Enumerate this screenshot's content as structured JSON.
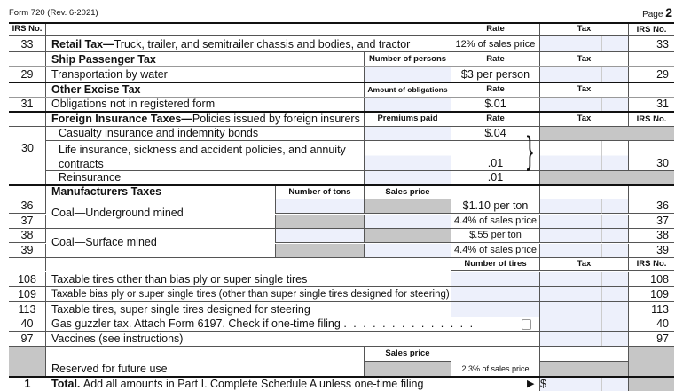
{
  "header": {
    "form": "Form 720 (Rev. 6-2021)",
    "page_label": "Page",
    "page_num": "2"
  },
  "col": {
    "irs_no": "IRS No.",
    "rate": "Rate",
    "tax": "Tax",
    "number_of_persons": "Number of persons",
    "amount_of_obligations": "Amount of obligations",
    "premiums_paid": "Premiums paid",
    "number_of_tons": "Number of tons",
    "sales_price": "Sales price",
    "number_of_tires": "Number of tires"
  },
  "retail": {
    "no": "33",
    "title": "Retail Tax—",
    "desc": "Truck, trailer, and semitrailer chassis and bodies, and tractor",
    "rate": "12% of sales price"
  },
  "ship": {
    "title": "Ship Passenger Tax",
    "no": "29",
    "desc": "Transportation by water",
    "rate": "$3 per person"
  },
  "other": {
    "title": "Other Excise Tax",
    "no": "31",
    "desc": "Obligations not in registered form",
    "rate": "$.01"
  },
  "foreign": {
    "title": "Foreign Insurance Taxes—",
    "subtitle": "Policies issued by foreign insurers",
    "no": "30",
    "items": [
      {
        "desc": "Casualty insurance and indemnity bonds",
        "rate": "$.04"
      },
      {
        "desc": "Life insurance, sickness and accident policies, and annuity",
        "desc2": "contracts",
        "rate": ".01"
      },
      {
        "desc": "Reinsurance",
        "rate": ".01"
      }
    ]
  },
  "mfg": {
    "title": "Manufacturers Taxes",
    "coal_under": "Coal—Underground mined",
    "coal_surface": "Coal—Surface mined",
    "rows": [
      {
        "no": "36",
        "rate": "$1.10 per ton"
      },
      {
        "no": "37",
        "rate": "4.4% of sales price"
      },
      {
        "no": "38",
        "rate": "$.55 per ton"
      },
      {
        "no": "39",
        "rate": "4.4% of sales price"
      }
    ]
  },
  "tires": [
    {
      "no": "108",
      "desc": "Taxable tires other than bias ply or super single tires"
    },
    {
      "no": "109",
      "desc": "Taxable bias ply or super single tires (other than super single tires designed for steering)"
    },
    {
      "no": "113",
      "desc": "Taxable tires, super single tires designed for steering"
    }
  ],
  "gas": {
    "no": "40",
    "desc": "Gas guzzler tax. Attach Form 6197. Check if one-time filing",
    "dots": ". . . . . . . . . . . . . .",
    "checked": false
  },
  "vaccines": {
    "no": "97",
    "desc": "Vaccines (see instructions)"
  },
  "reserved": {
    "desc": "Reserved for future use",
    "rate": "2.3% of sales price"
  },
  "total": {
    "no": "1",
    "label": "Total.",
    "desc": "Add all amounts in Part I. Complete Schedule A unless one-time filing",
    "arrow": "▶",
    "currency": "$"
  }
}
